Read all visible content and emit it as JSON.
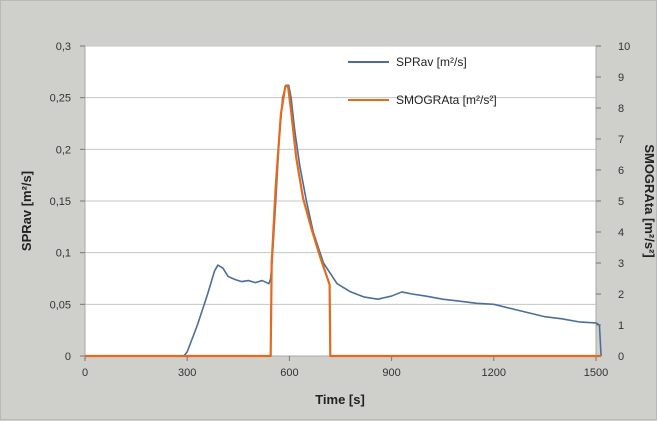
{
  "chart_data": {
    "type": "line",
    "xlabel": "Time [s]",
    "ylabel_left": "SPRav [m²/s]",
    "ylabel_right": "SMOGRAta [m²/s²]",
    "xlim": [
      0,
      1500
    ],
    "ylim_left": [
      0,
      0.3
    ],
    "ylim_right": [
      0,
      10
    ],
    "x_ticks": [
      0,
      300,
      600,
      900,
      1200,
      1500
    ],
    "x_tick_labels": [
      "0",
      "300",
      "600",
      "900",
      "1200",
      "1500"
    ],
    "y_left_ticks": [
      0,
      0.05,
      0.1,
      0.15,
      0.2,
      0.25,
      0.3
    ],
    "y_left_tick_labels": [
      "0",
      "0,05",
      "0,1",
      "0,15",
      "0,2",
      "0,25",
      "0,3"
    ],
    "y_right_ticks": [
      0,
      1,
      2,
      3,
      4,
      5,
      6,
      7,
      8,
      9,
      10
    ],
    "y_right_tick_labels": [
      "0",
      "1",
      "2",
      "3",
      "4",
      "5",
      "6",
      "7",
      "8",
      "9",
      "10"
    ],
    "grid": "horizontal",
    "legend_position": "top-right",
    "series": [
      {
        "name": "SPRav [m²/s]",
        "axis": "left",
        "color": "#4a6f9a",
        "x": [
          0,
          290,
          300,
          330,
          360,
          380,
          390,
          405,
          420,
          440,
          460,
          480,
          500,
          520,
          540,
          545,
          550,
          560,
          570,
          580,
          590,
          598,
          605,
          615,
          630,
          650,
          670,
          700,
          740,
          780,
          820,
          860,
          900,
          930,
          960,
          1000,
          1050,
          1100,
          1150,
          1200,
          1250,
          1300,
          1350,
          1400,
          1450,
          1500,
          1510,
          1515
        ],
        "y": [
          0,
          0,
          0.004,
          0.03,
          0.06,
          0.082,
          0.088,
          0.085,
          0.077,
          0.074,
          0.072,
          0.073,
          0.071,
          0.073,
          0.07,
          0.075,
          0.095,
          0.15,
          0.21,
          0.25,
          0.262,
          0.262,
          0.25,
          0.22,
          0.185,
          0.15,
          0.12,
          0.09,
          0.07,
          0.062,
          0.057,
          0.055,
          0.058,
          0.062,
          0.06,
          0.058,
          0.055,
          0.053,
          0.051,
          0.05,
          0.046,
          0.042,
          0.038,
          0.036,
          0.033,
          0.032,
          0.03,
          0
        ]
      },
      {
        "name": "SMOGRAta [m²/s²]",
        "axis": "right",
        "color": "#e46a1d",
        "x": [
          0,
          545,
          548,
          560,
          575,
          588,
          596,
          605,
          620,
          640,
          665,
          690,
          712,
          718,
          720,
          1515
        ],
        "y": [
          0,
          0,
          3.0,
          5.5,
          7.8,
          8.7,
          8.7,
          7.9,
          6.4,
          5.1,
          4.1,
          3.2,
          2.5,
          2.3,
          0,
          0
        ]
      }
    ]
  }
}
